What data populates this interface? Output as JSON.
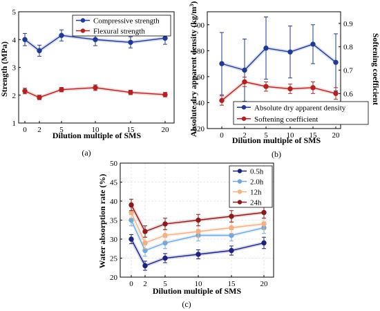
{
  "chart_data": [
    {
      "panel": "(a)",
      "type": "line",
      "xlabel": "Dilution multiple of SMS",
      "ylabel": "Strength (MPa)",
      "x": [
        0,
        2,
        5,
        10,
        15,
        20
      ],
      "x_tick_labels": [
        "0",
        "2",
        "5",
        "10",
        "15",
        "20"
      ],
      "ylim": [
        1,
        5
      ],
      "y_ticks": [
        1,
        2,
        3,
        4,
        5
      ],
      "legend_position": "top-right",
      "grid": false,
      "series": [
        {
          "name": "Compressive strength",
          "axis": "left",
          "color": "#1f3a93",
          "values": [
            4.0,
            3.6,
            4.15,
            4.0,
            3.9,
            4.05
          ],
          "errors": [
            0.22,
            0.2,
            0.2,
            0.22,
            0.2,
            0.22
          ]
        },
        {
          "name": "Flexural strength",
          "axis": "left",
          "color": "#b22222",
          "values": [
            2.15,
            1.92,
            2.2,
            2.27,
            2.1,
            2.02
          ],
          "errors": [
            0.1,
            0.08,
            0.08,
            0.1,
            0.08,
            0.08
          ]
        }
      ]
    },
    {
      "panel": "(b)",
      "type": "line",
      "xlabel": "Dilution multiple of SMS",
      "ylabel": "Absolute dry apparent density (kg/m",
      "ylabel_superscript": "3",
      "ylabel_suffix": ")",
      "y2label": "Softening coefficient",
      "x": [
        0,
        2,
        5,
        10,
        15,
        20
      ],
      "x_tick_labels": [
        "0",
        "2",
        "5",
        "10",
        "15",
        "20"
      ],
      "ylim": [
        620,
        710
      ],
      "y_ticks": [
        620,
        640,
        660,
        680,
        700
      ],
      "y2lim": [
        0.45,
        0.95
      ],
      "y2_ticks": [
        0.5,
        0.6,
        0.7,
        0.8,
        0.9
      ],
      "y2_tick_labels": [
        "0.5",
        "0.6",
        "0.7",
        "0.8",
        "0.9"
      ],
      "legend_position": "bottom-right",
      "grid": false,
      "series": [
        {
          "name": "Absolute dry apparent density",
          "axis": "left",
          "color": "#1f3a93",
          "values": [
            670,
            665,
            682,
            679,
            685,
            671
          ],
          "errors": [
            24,
            24,
            24,
            20,
            15,
            22
          ]
        },
        {
          "name": "Softening coefficient",
          "axis": "right",
          "color": "#b22222",
          "values": [
            0.57,
            0.65,
            0.63,
            0.62,
            0.625,
            0.6
          ],
          "errors": [
            0.02,
            0.02,
            0.02,
            0.02,
            0.025,
            0.025
          ]
        }
      ]
    },
    {
      "panel": "(c)",
      "type": "line",
      "xlabel": "Dilution multiple of SMS",
      "ylabel": "Water absorption rate (%)",
      "x": [
        0,
        2,
        5,
        10,
        15,
        20
      ],
      "x_tick_labels": [
        "0",
        "2",
        "5",
        "10",
        "15",
        "20"
      ],
      "ylim": [
        20,
        50
      ],
      "y_ticks": [
        20,
        25,
        30,
        35,
        40,
        45,
        50
      ],
      "legend_position": "top-right",
      "grid": true,
      "series": [
        {
          "name": "0.5h",
          "axis": "left",
          "color": "#1a237e",
          "values": [
            30,
            23,
            25,
            26,
            27,
            29
          ],
          "errors": [
            1.2,
            1.2,
            1.2,
            1.2,
            1.2,
            1.5
          ]
        },
        {
          "name": "2.0h",
          "axis": "left",
          "color": "#6fa8dc",
          "values": [
            35,
            27,
            29,
            31,
            31,
            33
          ],
          "errors": [
            1.5,
            1.5,
            1.5,
            1.5,
            1.5,
            1.5
          ]
        },
        {
          "name": "12h",
          "axis": "left",
          "color": "#f4b183",
          "values": [
            37,
            29,
            31,
            32,
            33,
            34
          ],
          "errors": [
            1.5,
            1.5,
            1.5,
            1.5,
            1.5,
            1.5
          ]
        },
        {
          "name": "24h",
          "axis": "left",
          "color": "#8b1a1a",
          "values": [
            39,
            32,
            34,
            35,
            36,
            37
          ],
          "errors": [
            1.5,
            1.5,
            1.5,
            1.5,
            1.5,
            1.5
          ]
        }
      ]
    }
  ]
}
